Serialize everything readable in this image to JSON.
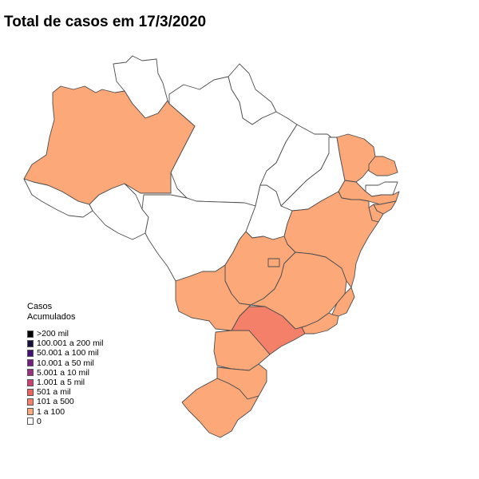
{
  "title": "Total de casos em 17/3/2020",
  "legend": {
    "title_line1": "Casos",
    "title_line2": "Acumulados",
    "items": [
      {
        "label": ">200 mil",
        "color": "#000004"
      },
      {
        "label": "100.001 a 200 mil",
        "color": "#180f3d"
      },
      {
        "label": "50.001 a 100 mil",
        "color": "#440f76"
      },
      {
        "label": "10.001 a 50 mil",
        "color": "#721f81"
      },
      {
        "label": "5.001 a 10 mil",
        "color": "#9e2f7f"
      },
      {
        "label": "1.001 a 5 mil",
        "color": "#cd4071"
      },
      {
        "label": "501 a mil",
        "color": "#f1605d"
      },
      {
        "label": "101 a 500",
        "color": "#f4806a"
      },
      {
        "label": "1 a 100",
        "color": "#fca878"
      },
      {
        "label": "0",
        "color": "#ffffff"
      }
    ]
  },
  "map_data": {
    "regions": [
      {
        "state": "AM",
        "category": "1 a 100",
        "color": "#fca878"
      },
      {
        "state": "RR",
        "category": "0",
        "color": "#ffffff"
      },
      {
        "state": "AP",
        "category": "0",
        "color": "#ffffff"
      },
      {
        "state": "PA",
        "category": "0",
        "color": "#ffffff"
      },
      {
        "state": "AC",
        "category": "0",
        "color": "#ffffff"
      },
      {
        "state": "RO",
        "category": "0",
        "color": "#ffffff"
      },
      {
        "state": "MT",
        "category": "0",
        "color": "#ffffff"
      },
      {
        "state": "TO",
        "category": "0",
        "color": "#ffffff"
      },
      {
        "state": "MA",
        "category": "0",
        "color": "#ffffff"
      },
      {
        "state": "PI",
        "category": "0",
        "color": "#ffffff"
      },
      {
        "state": "CE",
        "category": "1 a 100",
        "color": "#fca878"
      },
      {
        "state": "RN",
        "category": "1 a 100",
        "color": "#fca878"
      },
      {
        "state": "PB",
        "category": "0",
        "color": "#ffffff"
      },
      {
        "state": "PE",
        "category": "1 a 100",
        "color": "#fca878"
      },
      {
        "state": "AL",
        "category": "1 a 100",
        "color": "#fca878"
      },
      {
        "state": "SE",
        "category": "1 a 100",
        "color": "#fca878"
      },
      {
        "state": "BA",
        "category": "1 a 100",
        "color": "#fca878"
      },
      {
        "state": "GO",
        "category": "1 a 100",
        "color": "#fca878"
      },
      {
        "state": "DF",
        "category": "1 a 100",
        "color": "#fca878"
      },
      {
        "state": "MG",
        "category": "1 a 100",
        "color": "#fca878"
      },
      {
        "state": "ES",
        "category": "1 a 100",
        "color": "#fca878"
      },
      {
        "state": "RJ",
        "category": "1 a 100",
        "color": "#fca878"
      },
      {
        "state": "SP",
        "category": "101 a 500",
        "color": "#f4806a"
      },
      {
        "state": "MS",
        "category": "1 a 100",
        "color": "#fca878"
      },
      {
        "state": "PR",
        "category": "1 a 100",
        "color": "#fca878"
      },
      {
        "state": "SC",
        "category": "1 a 100",
        "color": "#fca878"
      },
      {
        "state": "RS",
        "category": "1 a 100",
        "color": "#fca878"
      }
    ]
  }
}
